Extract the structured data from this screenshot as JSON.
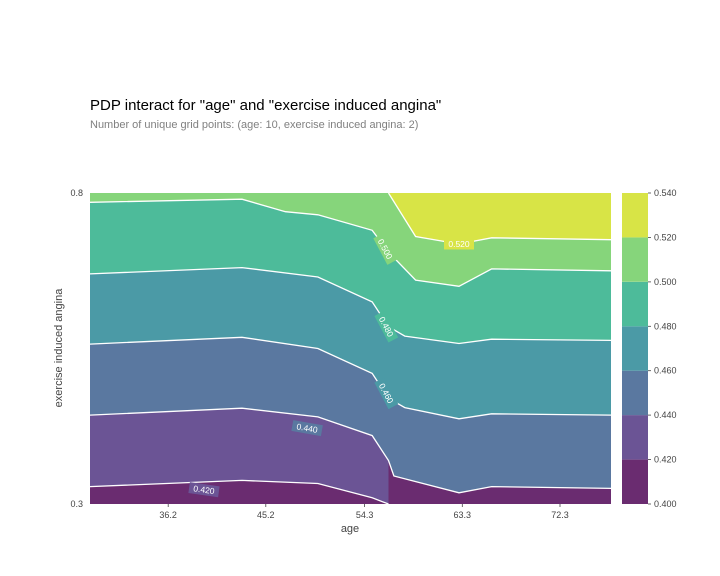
{
  "title": "PDP interact for \"age\" and \"exercise induced angina\"",
  "subtitle": "Number of unique grid points: (age: 10, exercise induced angina: 2)",
  "colors": {
    "bands": [
      "#6a2c70",
      "#6b5495",
      "#5a78a0",
      "#4b9aa6",
      "#4dbb9a",
      "#86d57b",
      "#d8e446"
    ],
    "contour_line": "#ffffff"
  },
  "chart_data": {
    "type": "contour",
    "xlabel": "age",
    "ylabel": "exercise induced angina",
    "x_ticks": [
      "36.2",
      "45.2",
      "54.3",
      "63.3",
      "72.3"
    ],
    "x_tick_values": [
      36.2,
      45.2,
      54.3,
      63.3,
      72.3
    ],
    "xlim": [
      29,
      77
    ],
    "y_ticks": [
      "0.3",
      "0.8"
    ],
    "ylim": [
      0.3,
      0.8
    ],
    "contour_levels": [
      0.4,
      0.42,
      0.44,
      0.46,
      0.48,
      0.5,
      0.52,
      0.54
    ],
    "contour_labels": [
      "0.420",
      "0.440",
      "0.460",
      "0.480",
      "0.500",
      "0.520"
    ],
    "colorbar_ticks": [
      "0.540",
      "0.520",
      "0.500",
      "0.480",
      "0.460",
      "0.440",
      "0.420",
      "0.400"
    ],
    "contours": [
      {
        "level": 0.42,
        "x": [
          29,
          43,
          50,
          55,
          56.5
        ],
        "y": [
          0.328,
          0.338,
          0.333,
          0.31,
          0.3
        ]
      },
      {
        "level": 0.44,
        "x": [
          29,
          43,
          50,
          55,
          56.5,
          57,
          63,
          66,
          77
        ],
        "y": [
          0.443,
          0.454,
          0.44,
          0.41,
          0.37,
          0.345,
          0.318,
          0.328,
          0.325
        ]
      },
      {
        "level": 0.46,
        "x": [
          29,
          43,
          50,
          55,
          56.5,
          58,
          63,
          66,
          77
        ],
        "y": [
          0.557,
          0.568,
          0.55,
          0.51,
          0.47,
          0.455,
          0.437,
          0.445,
          0.443
        ]
      },
      {
        "level": 0.48,
        "x": [
          29,
          43,
          50,
          55,
          56.5,
          58,
          63,
          66,
          77
        ],
        "y": [
          0.67,
          0.68,
          0.665,
          0.625,
          0.585,
          0.57,
          0.558,
          0.565,
          0.563
        ]
      },
      {
        "level": 0.5,
        "x": [
          29,
          43,
          47,
          50,
          55,
          56.5,
          59,
          63,
          66,
          77
        ],
        "y": [
          0.785,
          0.79,
          0.77,
          0.765,
          0.74,
          0.705,
          0.66,
          0.65,
          0.678,
          0.675
        ]
      },
      {
        "level": 0.52,
        "x": [
          56.5,
          59,
          63,
          66,
          77
        ],
        "y": [
          0.8,
          0.73,
          0.718,
          0.728,
          0.725
        ]
      }
    ]
  }
}
